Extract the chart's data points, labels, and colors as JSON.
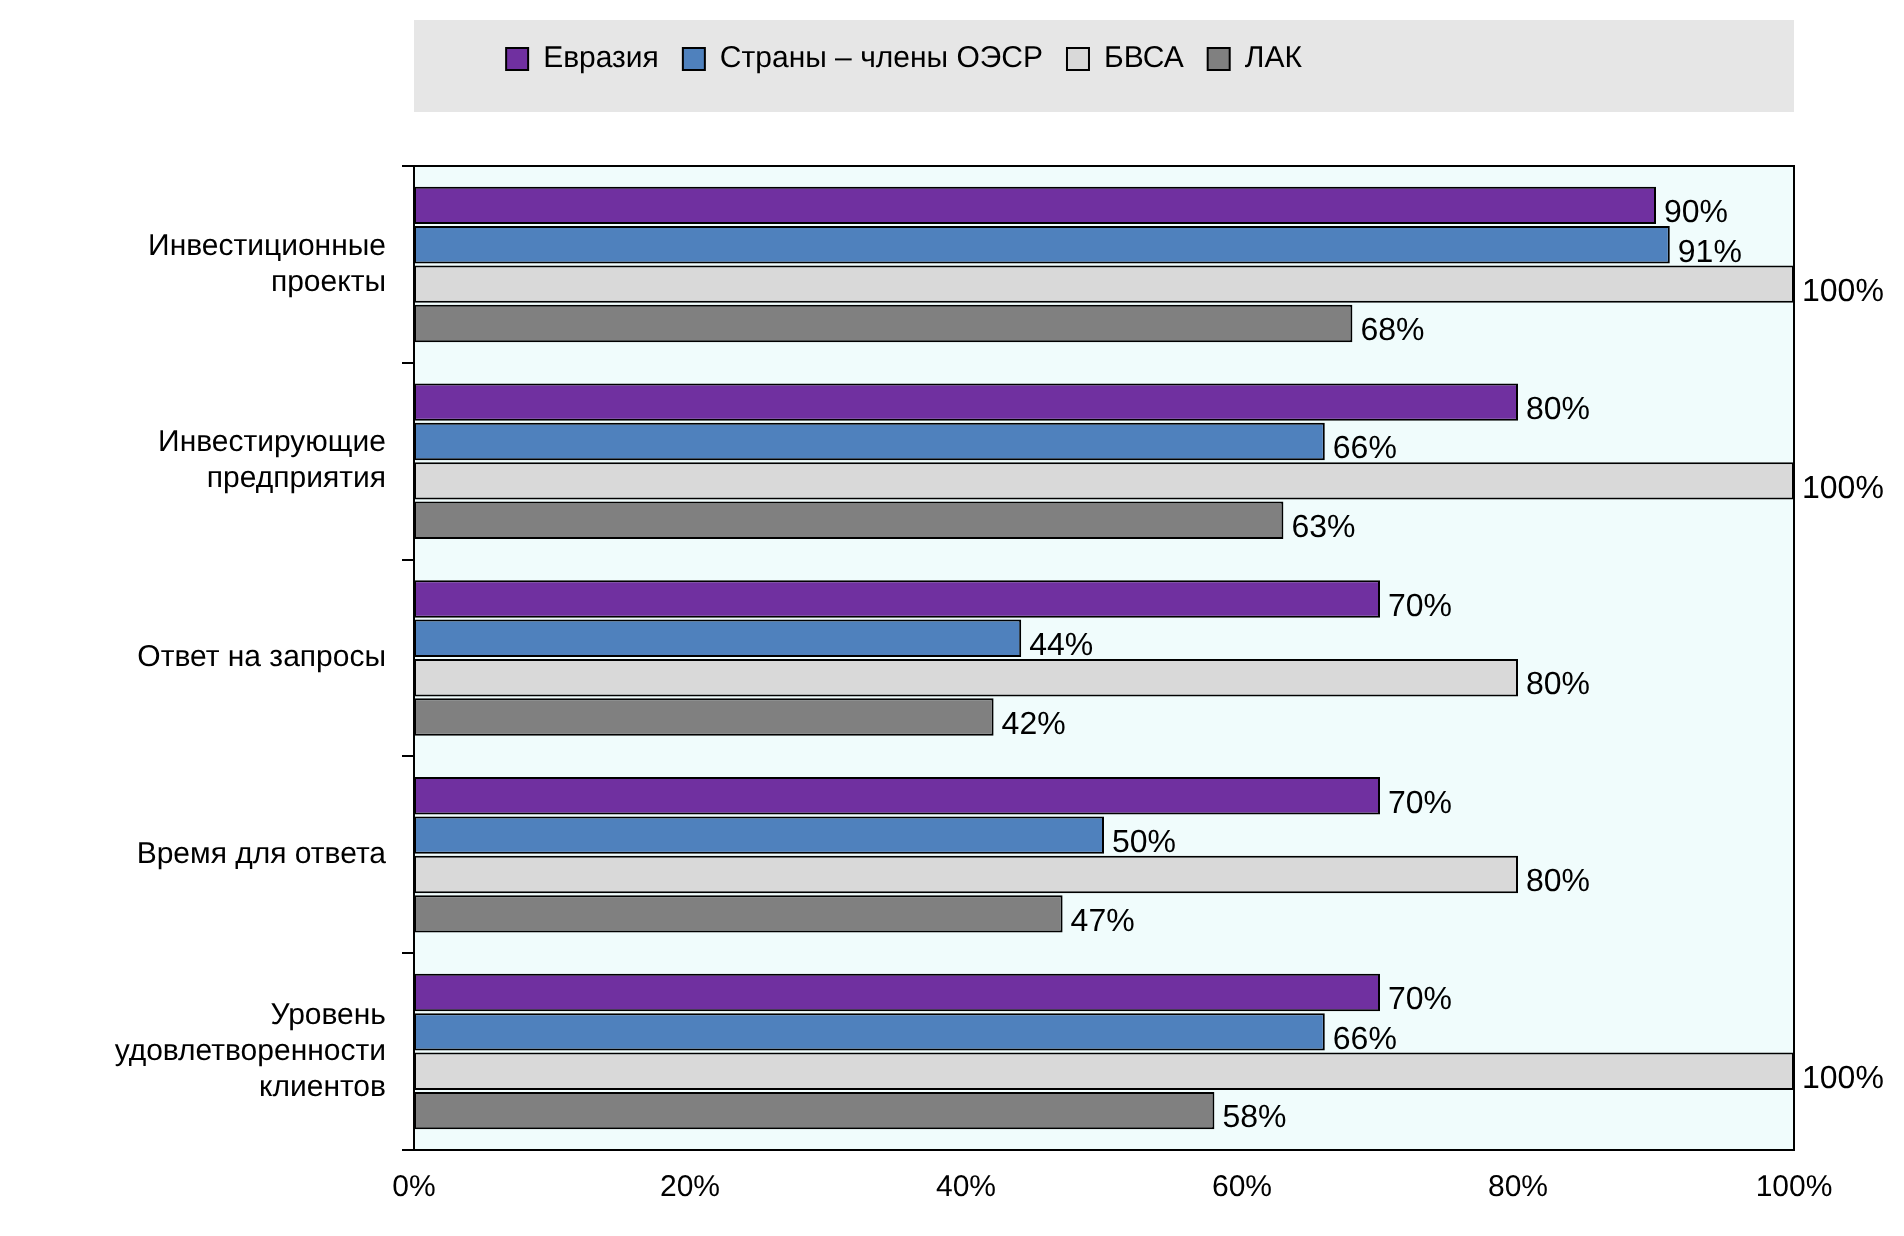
{
  "chart_data": {
    "type": "bar",
    "orientation": "horizontal",
    "categories": [
      "Инвестиционные проекты",
      "Инвестирующие предприятия",
      "Ответ на запросы",
      "Время для ответа",
      "Уровень удовлетворенности клиентов"
    ],
    "series": [
      {
        "name": "Евразия",
        "color": "#7030a0",
        "values": [
          90,
          80,
          70,
          70,
          70
        ],
        "value_labels": [
          "90%",
          "80%",
          "70%",
          "70%",
          "70%"
        ]
      },
      {
        "name": "Страны – члены ОЭСР",
        "color": "#4f81bd",
        "values": [
          91,
          66,
          44,
          50,
          66
        ],
        "value_labels": [
          "91%",
          "66%",
          "44%",
          "50%",
          "66%"
        ]
      },
      {
        "name": "БВСА",
        "color": "#d9d9d9",
        "values": [
          100,
          100,
          80,
          80,
          100
        ],
        "value_labels": [
          "100%",
          "100%",
          "80%",
          "80%",
          "100%"
        ]
      },
      {
        "name": "ЛАК",
        "color": "#808080",
        "values": [
          68,
          63,
          42,
          47,
          58
        ],
        "value_labels": [
          "68%",
          "63%",
          "42%",
          "47%",
          "58%"
        ]
      }
    ],
    "xlim": [
      0,
      100
    ],
    "xticks": [
      {
        "value": 0,
        "label": "0%"
      },
      {
        "value": 20,
        "label": "20%"
      },
      {
        "value": 40,
        "label": "40%"
      },
      {
        "value": 60,
        "label": "60%"
      },
      {
        "value": 80,
        "label": "80%"
      },
      {
        "value": 100,
        "label": "100%"
      }
    ],
    "legend": "top",
    "grid": false
  }
}
